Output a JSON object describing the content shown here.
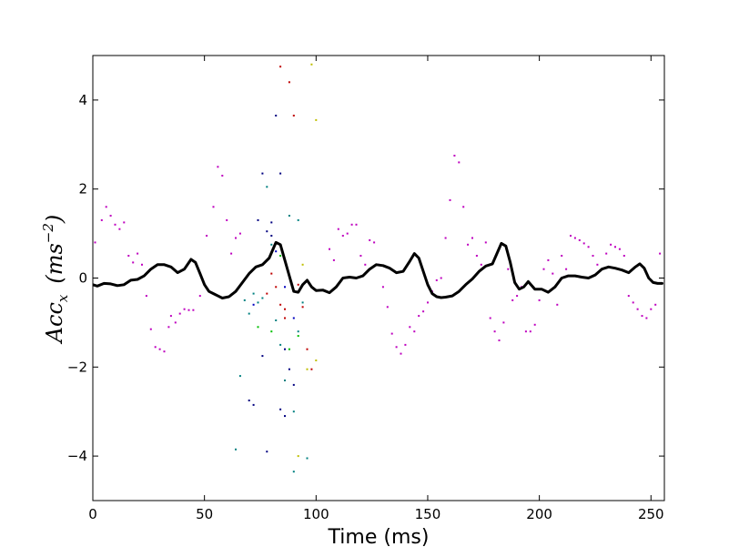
{
  "chart_data": {
    "type": "scatter",
    "title": "",
    "xlabel": "Time (ms)",
    "ylabel": "Acc",
    "ylabel_subscript": "x",
    "ylabel_unit": "(ms",
    "ylabel_unit_exp": "−2",
    "ylabel_unit_close": ")",
    "xlim": [
      0,
      256
    ],
    "ylim": [
      -5,
      5
    ],
    "xticks": [
      0,
      50,
      100,
      150,
      200,
      250
    ],
    "yticks": [
      -4,
      -2,
      0,
      2,
      4
    ],
    "grid": false,
    "legend": "none",
    "mean_line": {
      "color": "#000000",
      "x": [
        0,
        2,
        5,
        8,
        11,
        14,
        17,
        20,
        23,
        26,
        29,
        32,
        35,
        38,
        41,
        44,
        46,
        48,
        50,
        52,
        54,
        56,
        58,
        61,
        64,
        67,
        70,
        73,
        76,
        79,
        82,
        84,
        86,
        88,
        90,
        92,
        94,
        96,
        98,
        100,
        103,
        106,
        109,
        112,
        115,
        118,
        121,
        124,
        127,
        130,
        133,
        136,
        139,
        142,
        144,
        146,
        148,
        150,
        152,
        154,
        156,
        158,
        161,
        164,
        167,
        170,
        173,
        176,
        179,
        181,
        183,
        185,
        187,
        189,
        191,
        193,
        195,
        198,
        201,
        204,
        207,
        210,
        213,
        216,
        219,
        222,
        225,
        228,
        231,
        234,
        237,
        240,
        243,
        245,
        247,
        249,
        251,
        253,
        255
      ],
      "y": [
        -0.15,
        -0.18,
        -0.12,
        -0.13,
        -0.17,
        -0.15,
        -0.05,
        -0.03,
        0.05,
        0.2,
        0.3,
        0.3,
        0.25,
        0.12,
        0.2,
        0.42,
        0.35,
        0.1,
        -0.15,
        -0.3,
        -0.35,
        -0.4,
        -0.45,
        -0.42,
        -0.3,
        -0.1,
        0.1,
        0.25,
        0.3,
        0.45,
        0.8,
        0.75,
        0.4,
        0.05,
        -0.3,
        -0.32,
        -0.15,
        -0.05,
        -0.2,
        -0.28,
        -0.27,
        -0.33,
        -0.2,
        0.0,
        0.02,
        0.0,
        0.05,
        0.2,
        0.3,
        0.28,
        0.22,
        0.12,
        0.15,
        0.38,
        0.55,
        0.45,
        0.15,
        -0.15,
        -0.35,
        -0.42,
        -0.44,
        -0.43,
        -0.4,
        -0.3,
        -0.15,
        -0.02,
        0.15,
        0.27,
        0.32,
        0.55,
        0.78,
        0.72,
        0.35,
        -0.1,
        -0.25,
        -0.2,
        -0.08,
        -0.25,
        -0.25,
        -0.32,
        -0.2,
        0.0,
        0.05,
        0.05,
        0.02,
        0.0,
        0.07,
        0.2,
        0.25,
        0.22,
        0.18,
        0.12,
        0.25,
        0.32,
        0.22,
        0.0,
        -0.1,
        -0.12,
        -0.12
      ]
    },
    "series": [
      {
        "color": "#bf00bf",
        "points": [
          [
            1,
            0.8
          ],
          [
            4,
            1.3
          ],
          [
            6,
            1.6
          ],
          [
            8,
            1.4
          ],
          [
            10,
            1.2
          ],
          [
            12,
            1.1
          ],
          [
            14,
            1.25
          ],
          [
            16,
            0.5
          ],
          [
            18,
            0.35
          ],
          [
            20,
            0.55
          ],
          [
            22,
            0.3
          ],
          [
            24,
            -0.4
          ],
          [
            26,
            -1.15
          ],
          [
            28,
            -1.55
          ],
          [
            30,
            -1.6
          ],
          [
            32,
            -1.65
          ],
          [
            34,
            -1.1
          ],
          [
            35,
            -0.85
          ],
          [
            37,
            -1.0
          ],
          [
            39,
            -0.8
          ],
          [
            41,
            -0.7
          ],
          [
            43,
            -0.72
          ],
          [
            45,
            -0.72
          ],
          [
            48,
            -0.4
          ],
          [
            51,
            0.95
          ],
          [
            54,
            1.6
          ],
          [
            56,
            2.5
          ],
          [
            58,
            2.3
          ],
          [
            60,
            1.3
          ],
          [
            62,
            0.55
          ],
          [
            64,
            0.9
          ],
          [
            66,
            1.0
          ],
          [
            160,
            1.75
          ],
          [
            162,
            2.75
          ],
          [
            164,
            2.6
          ],
          [
            166,
            1.6
          ],
          [
            168,
            0.75
          ],
          [
            170,
            0.9
          ],
          [
            172,
            0.5
          ],
          [
            174,
            0.3
          ],
          [
            176,
            0.8
          ],
          [
            178,
            -0.9
          ],
          [
            180,
            -1.2
          ],
          [
            182,
            -1.4
          ],
          [
            184,
            -1.0
          ],
          [
            186,
            0.2
          ],
          [
            188,
            -0.5
          ],
          [
            190,
            -0.4
          ],
          [
            192,
            -0.2
          ],
          [
            194,
            -1.2
          ],
          [
            196,
            -1.2
          ],
          [
            198,
            -1.05
          ],
          [
            200,
            -0.5
          ],
          [
            202,
            0.2
          ],
          [
            204,
            0.4
          ],
          [
            206,
            0.1
          ],
          [
            208,
            -0.6
          ],
          [
            210,
            0.5
          ],
          [
            212,
            0.2
          ],
          [
            214,
            0.95
          ],
          [
            216,
            0.9
          ],
          [
            218,
            0.85
          ],
          [
            220,
            0.78
          ],
          [
            222,
            0.7
          ],
          [
            224,
            0.5
          ],
          [
            226,
            0.3
          ],
          [
            228,
            0.2
          ],
          [
            230,
            0.55
          ],
          [
            232,
            0.75
          ],
          [
            234,
            0.7
          ],
          [
            236,
            0.65
          ],
          [
            238,
            0.5
          ],
          [
            240,
            -0.4
          ],
          [
            242,
            -0.55
          ],
          [
            244,
            -0.7
          ],
          [
            246,
            -0.85
          ],
          [
            248,
            -0.9
          ],
          [
            250,
            -0.7
          ],
          [
            252,
            -0.6
          ],
          [
            254,
            0.55
          ],
          [
            106,
            0.65
          ],
          [
            108,
            0.4
          ],
          [
            110,
            1.1
          ],
          [
            112,
            0.95
          ],
          [
            114,
            1.0
          ],
          [
            116,
            1.2
          ],
          [
            118,
            1.2
          ],
          [
            120,
            0.5
          ],
          [
            122,
            0.3
          ],
          [
            124,
            0.85
          ],
          [
            126,
            0.8
          ],
          [
            128,
            0.3
          ],
          [
            130,
            -0.2
          ],
          [
            132,
            -0.65
          ],
          [
            134,
            -1.25
          ],
          [
            136,
            -1.55
          ],
          [
            138,
            -1.7
          ],
          [
            140,
            -1.5
          ],
          [
            142,
            -1.1
          ],
          [
            144,
            -1.2
          ],
          [
            146,
            -0.85
          ],
          [
            148,
            -0.75
          ],
          [
            150,
            -0.55
          ],
          [
            152,
            -0.3
          ],
          [
            154,
            -0.05
          ],
          [
            156,
            0.0
          ],
          [
            158,
            0.9
          ]
        ]
      },
      {
        "color": "#000080",
        "points": [
          [
            70,
            -2.75
          ],
          [
            72,
            -2.85
          ],
          [
            74,
            1.3
          ],
          [
            76,
            2.35
          ],
          [
            78,
            1.05
          ],
          [
            80,
            1.25
          ],
          [
            82,
            3.65
          ],
          [
            84,
            2.35
          ],
          [
            86,
            -1.6
          ],
          [
            88,
            -2.05
          ],
          [
            90,
            -2.4
          ],
          [
            76,
            -1.75
          ],
          [
            78,
            -3.9
          ],
          [
            80,
            0.95
          ],
          [
            84,
            -2.95
          ],
          [
            86,
            -3.1
          ]
        ]
      },
      {
        "color": "#008080",
        "points": [
          [
            66,
            -2.2
          ],
          [
            68,
            -0.5
          ],
          [
            70,
            -0.8
          ],
          [
            72,
            -0.35
          ],
          [
            74,
            -0.55
          ],
          [
            76,
            -0.45
          ],
          [
            78,
            2.05
          ],
          [
            80,
            0.75
          ],
          [
            82,
            -0.95
          ],
          [
            84,
            -1.5
          ],
          [
            86,
            -2.3
          ],
          [
            88,
            1.4
          ],
          [
            90,
            -3.0
          ],
          [
            92,
            1.3
          ],
          [
            94,
            -0.55
          ],
          [
            96,
            -4.05
          ],
          [
            64,
            -3.85
          ],
          [
            90,
            -4.35
          ],
          [
            92,
            -1.2
          ]
        ]
      },
      {
        "color": "#bf0000",
        "points": [
          [
            78,
            -0.35
          ],
          [
            80,
            0.1
          ],
          [
            82,
            -0.2
          ],
          [
            84,
            -0.6
          ],
          [
            86,
            -0.9
          ],
          [
            88,
            4.4
          ],
          [
            90,
            3.65
          ],
          [
            92,
            -0.15
          ],
          [
            94,
            -0.65
          ],
          [
            96,
            -1.6
          ],
          [
            98,
            -2.05
          ],
          [
            84,
            4.75
          ],
          [
            86,
            -0.7
          ]
        ]
      },
      {
        "color": "#bfbf00",
        "points": [
          [
            98,
            4.8
          ],
          [
            100,
            3.55
          ],
          [
            96,
            -2.05
          ],
          [
            92,
            -4.0
          ],
          [
            100,
            -1.85
          ],
          [
            94,
            0.3
          ]
        ]
      },
      {
        "color": "#00bf00",
        "points": [
          [
            74,
            -1.1
          ],
          [
            80,
            -1.2
          ],
          [
            84,
            0.5
          ],
          [
            88,
            -1.6
          ],
          [
            92,
            -1.3
          ]
        ]
      },
      {
        "color": "#0000bf",
        "points": [
          [
            72,
            -0.6
          ],
          [
            82,
            0.6
          ],
          [
            86,
            -0.2
          ],
          [
            90,
            -0.9
          ]
        ]
      }
    ]
  }
}
